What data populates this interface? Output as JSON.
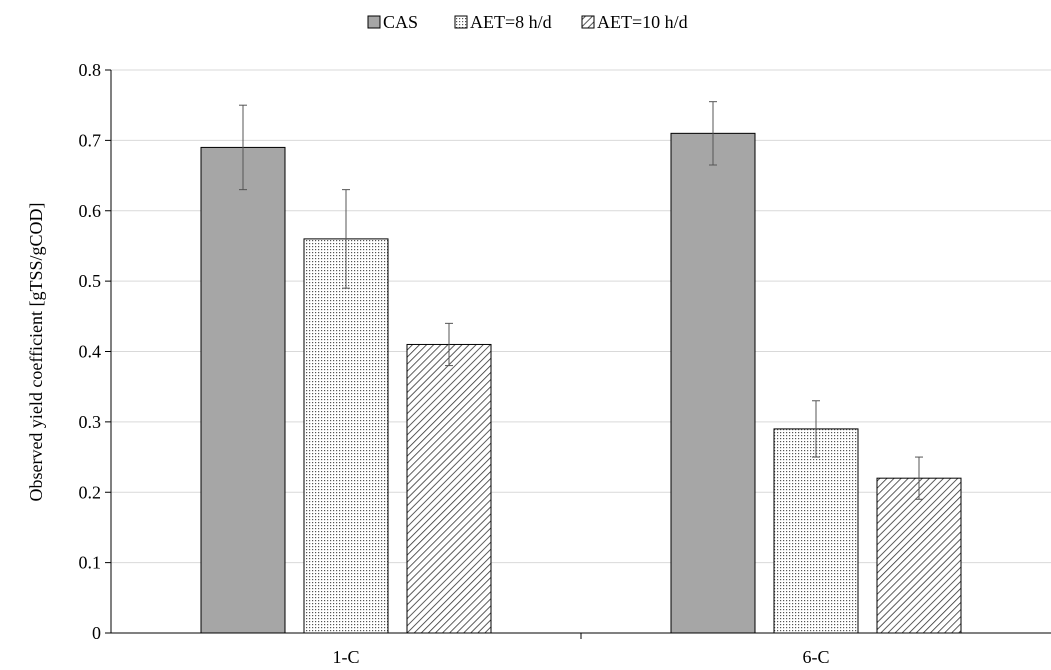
{
  "chart_data": {
    "type": "bar",
    "title": "",
    "xlabel": "",
    "ylabel": "Observed yield coefficient [gTSS/gCOD]",
    "ylim": [
      0,
      0.8
    ],
    "yticks": [
      "0",
      "0.1",
      "0.2",
      "0.3",
      "0.4",
      "0.5",
      "0.6",
      "0.7",
      "0.8"
    ],
    "categories": [
      "1-C",
      "6-C"
    ],
    "grid": "horizontal",
    "legend_position": "top-center",
    "series": [
      {
        "name": "CAS",
        "pattern": "solid",
        "color": "#a6a6a6",
        "values": [
          0.69,
          0.71
        ],
        "errors": [
          0.06,
          0.045
        ]
      },
      {
        "name": "AET=8 h/d",
        "pattern": "dots",
        "color": "#ffffff",
        "values": [
          0.56,
          0.29
        ],
        "errors": [
          0.07,
          0.04
        ]
      },
      {
        "name": "AET=10 h/d",
        "pattern": "diagonal",
        "color": "#ffffff",
        "values": [
          0.41,
          0.22
        ],
        "errors": [
          0.03,
          0.03
        ]
      }
    ]
  }
}
